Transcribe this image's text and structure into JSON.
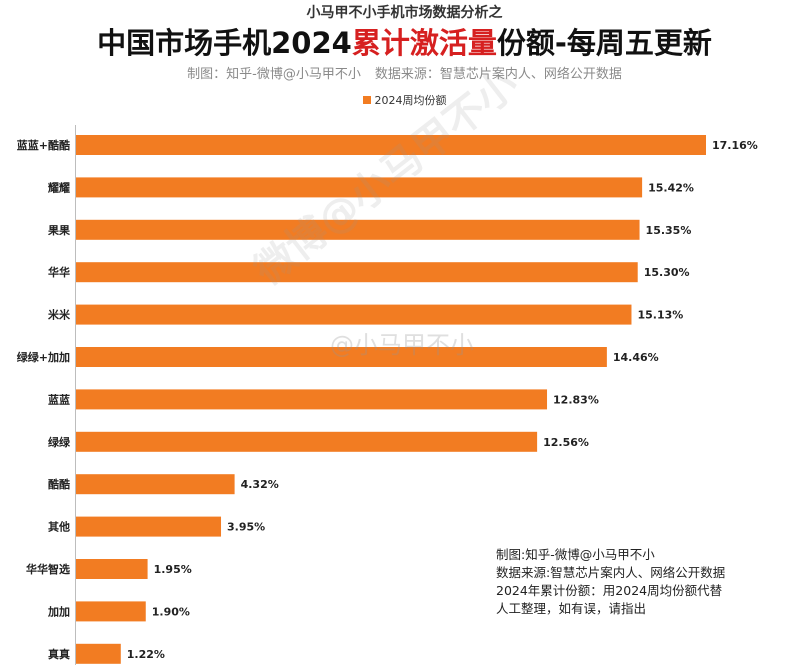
{
  "header": {
    "supertitle": "小马甲不小手机市场数据分析之",
    "title_part1": "中国市场手机2024",
    "title_highlight": "累计激活量",
    "title_part2": "份额-每周五更新",
    "credit_maker": "制图：知乎-微博@小马甲不小",
    "credit_source": "数据来源：智慧芯片案内人、网络公开数据"
  },
  "watermark": {
    "main": "微博@小马甲不小",
    "secondary": "@小马甲不小"
  },
  "note": {
    "lines": [
      "制图:知乎-微博@小马甲不小",
      "数据来源:智慧芯片案内人、网络公开数据",
      "2024年累计份额：用2024周均份额代替",
      "人工整理，如有误，请指出"
    ]
  },
  "chart_data": {
    "type": "bar",
    "orientation": "horizontal",
    "categories": [
      "蓝蓝+酷酷",
      "耀耀",
      "果果",
      "华华",
      "米米",
      "绿绿+加加",
      "蓝蓝",
      "绿绿",
      "酷酷",
      "其他",
      "华华智选",
      "加加",
      "真真"
    ],
    "series": [
      {
        "name": "2024周均份额",
        "values": [
          17.16,
          15.42,
          15.35,
          15.3,
          15.13,
          14.46,
          12.83,
          12.56,
          4.32,
          3.95,
          1.95,
          1.9,
          1.22
        ],
        "labels": [
          "17.16%",
          "15.42%",
          "15.35%",
          "15.30%",
          "15.13%",
          "14.46%",
          "12.83%",
          "12.56%",
          "4.32%",
          "3.95%",
          "1.95%",
          "1.90%",
          "1.22%"
        ]
      }
    ],
    "legend": "top-center",
    "grid": false,
    "xlim": [
      0,
      17.16
    ],
    "color": "#f27c22"
  }
}
